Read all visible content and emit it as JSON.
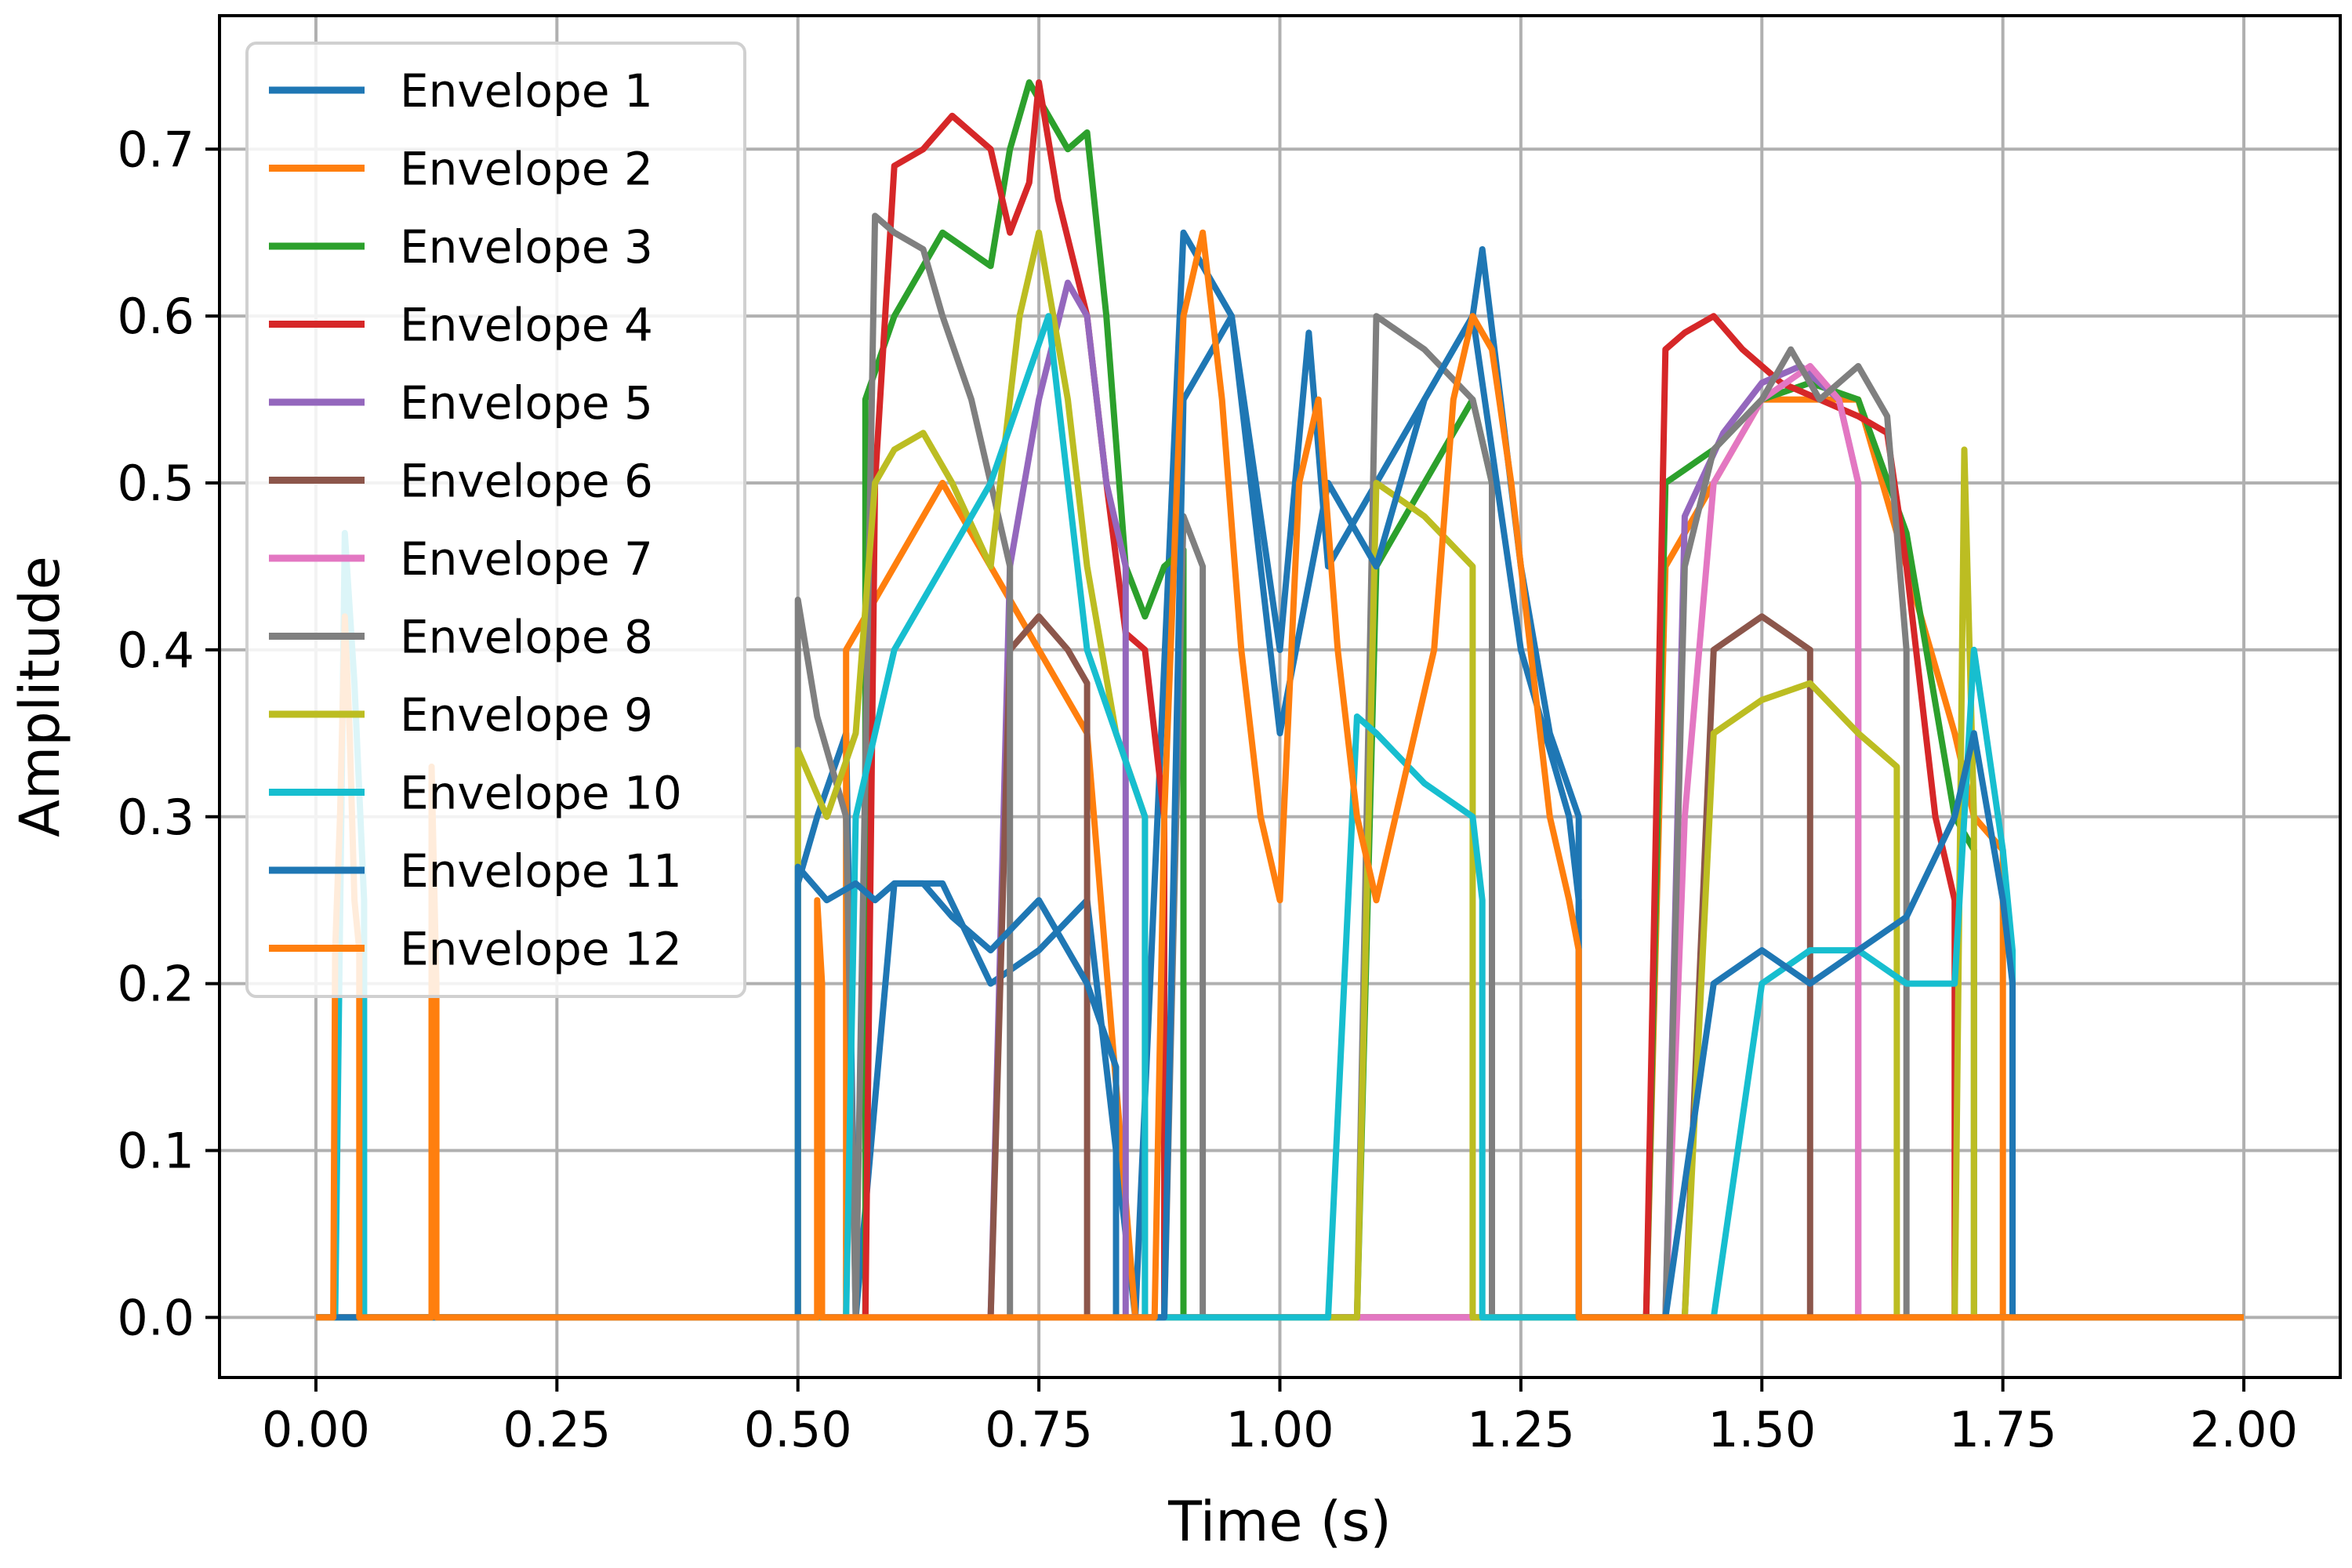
{
  "chart_data": {
    "type": "line",
    "title": "",
    "xlabel": "Time (s)",
    "ylabel": "Amplitude",
    "xlim": [
      -0.1,
      2.1
    ],
    "ylim": [
      -0.036,
      0.78
    ],
    "xticks": [
      "0.00",
      "0.25",
      "0.50",
      "0.75",
      "1.00",
      "1.25",
      "1.50",
      "1.75",
      "2.00"
    ],
    "yticks": [
      "0.0",
      "0.1",
      "0.2",
      "0.3",
      "0.4",
      "0.5",
      "0.6",
      "0.7"
    ],
    "xtick_values": [
      0,
      0.25,
      0.5,
      0.75,
      1.0,
      1.25,
      1.5,
      1.75,
      2.0
    ],
    "ytick_values": [
      0,
      0.1,
      0.2,
      0.3,
      0.4,
      0.5,
      0.6,
      0.7
    ],
    "grid": true,
    "legend_position": "upper-left",
    "series": [
      {
        "name": "Envelope 1",
        "color": "#1f77b4",
        "x": [
          0,
          0.5,
          0.5,
          0.52,
          0.55,
          0.56,
          0.6,
          0.65,
          0.7,
          0.75,
          0.8,
          0.85,
          0.9,
          0.95,
          1.0,
          1.03,
          1.05,
          1.1,
          1.15,
          1.2,
          1.21,
          1.25,
          1.28,
          1.31,
          1.31,
          1.39,
          1.39,
          2.0
        ],
        "y": [
          0,
          0,
          0.26,
          0.3,
          0.35,
          0.0,
          0.26,
          0.26,
          0.2,
          0.22,
          0.25,
          0.0,
          0.65,
          0.6,
          0.4,
          0.59,
          0.45,
          0.5,
          0.55,
          0.6,
          0.64,
          0.45,
          0.35,
          0.3,
          0,
          0,
          0,
          0
        ]
      },
      {
        "name": "Envelope 2",
        "color": "#ff7f0e",
        "x": [
          0,
          0.55,
          0.55,
          0.6,
          0.65,
          0.7,
          0.75,
          0.8,
          0.85,
          1.38,
          1.4,
          1.5,
          1.6,
          1.65,
          1.7,
          1.72,
          1.75,
          1.75,
          2.0
        ],
        "y": [
          0,
          0,
          0.4,
          0.45,
          0.5,
          0.45,
          0.4,
          0.35,
          0.0,
          0,
          0.45,
          0.55,
          0.55,
          0.45,
          0.35,
          0.3,
          0.28,
          0,
          0
        ]
      },
      {
        "name": "Envelope 3",
        "color": "#2ca02c",
        "x": [
          0,
          0.57,
          0.57,
          0.6,
          0.65,
          0.7,
          0.72,
          0.74,
          0.76,
          0.78,
          0.8,
          0.82,
          0.84,
          0.86,
          0.88,
          0.9,
          0.9,
          1.08,
          1.1,
          1.15,
          1.2,
          1.22,
          1.22,
          1.38,
          1.4,
          1.45,
          1.5,
          1.55,
          1.6,
          1.65,
          1.7,
          1.72,
          1.72,
          2.0
        ],
        "y": [
          0,
          0,
          0.55,
          0.6,
          0.65,
          0.63,
          0.7,
          0.74,
          0.72,
          0.7,
          0.71,
          0.6,
          0.45,
          0.42,
          0.45,
          0.46,
          0,
          0,
          0.45,
          0.5,
          0.55,
          0.5,
          0,
          0,
          0.5,
          0.52,
          0.55,
          0.56,
          0.55,
          0.47,
          0.3,
          0.28,
          0,
          0
        ]
      },
      {
        "name": "Envelope 4",
        "color": "#d62728",
        "x": [
          0,
          0.57,
          0.58,
          0.6,
          0.63,
          0.66,
          0.68,
          0.7,
          0.72,
          0.74,
          0.75,
          0.77,
          0.8,
          0.82,
          0.84,
          0.86,
          0.88,
          0.88,
          1.38,
          1.4,
          1.42,
          1.45,
          1.48,
          1.52,
          1.56,
          1.6,
          1.63,
          1.65,
          1.68,
          1.7,
          1.7,
          2.0
        ],
        "y": [
          0,
          0,
          0.5,
          0.69,
          0.7,
          0.72,
          0.71,
          0.7,
          0.65,
          0.68,
          0.74,
          0.67,
          0.6,
          0.5,
          0.41,
          0.4,
          0.3,
          0,
          0,
          0.58,
          0.59,
          0.6,
          0.58,
          0.56,
          0.55,
          0.54,
          0.53,
          0.45,
          0.3,
          0.25,
          0,
          0
        ]
      },
      {
        "name": "Envelope 5",
        "color": "#9467bd",
        "x": [
          0,
          0.7,
          0.72,
          0.75,
          0.78,
          0.8,
          0.82,
          0.84,
          0.84,
          1.4,
          1.42,
          1.46,
          1.5,
          1.54,
          1.58,
          1.6,
          1.6,
          2.0
        ],
        "y": [
          0,
          0,
          0.45,
          0.55,
          0.62,
          0.6,
          0.5,
          0.45,
          0,
          0,
          0.48,
          0.53,
          0.56,
          0.57,
          0.55,
          0.5,
          0,
          0
        ]
      },
      {
        "name": "Envelope 6",
        "color": "#8c564b",
        "x": [
          0,
          0.7,
          0.72,
          0.75,
          0.78,
          0.8,
          0.8,
          1.42,
          1.45,
          1.5,
          1.55,
          1.55,
          2.0
        ],
        "y": [
          0,
          0,
          0.4,
          0.42,
          0.4,
          0.38,
          0,
          0,
          0.4,
          0.42,
          0.4,
          0,
          0
        ]
      },
      {
        "name": "Envelope 7",
        "color": "#e377c2",
        "x": [
          0,
          1.4,
          1.42,
          1.45,
          1.5,
          1.55,
          1.58,
          1.6,
          1.6,
          2.0
        ],
        "y": [
          0,
          0,
          0.3,
          0.5,
          0.55,
          0.57,
          0.55,
          0.5,
          0,
          0
        ]
      },
      {
        "name": "Envelope 8",
        "color": "#7f7f7f",
        "x": [
          0,
          0.5,
          0.5,
          0.52,
          0.55,
          0.56,
          0.58,
          0.6,
          0.63,
          0.65,
          0.68,
          0.7,
          0.72,
          0.72,
          0.88,
          0.9,
          0.92,
          0.92,
          1.08,
          1.1,
          1.15,
          1.2,
          1.22,
          1.22,
          1.4,
          1.42,
          1.45,
          1.5,
          1.53,
          1.56,
          1.6,
          1.63,
          1.65,
          1.65,
          2.0
        ],
        "y": [
          0,
          0,
          0.43,
          0.36,
          0.3,
          0.0,
          0.66,
          0.65,
          0.64,
          0.6,
          0.55,
          0.5,
          0.45,
          0,
          0,
          0.48,
          0.45,
          0,
          0,
          0.6,
          0.58,
          0.55,
          0.5,
          0,
          0,
          0.45,
          0.52,
          0.55,
          0.58,
          0.55,
          0.57,
          0.54,
          0.4,
          0,
          0
        ]
      },
      {
        "name": "Envelope 9",
        "color": "#bcbd22",
        "x": [
          0,
          0.5,
          0.5,
          0.53,
          0.56,
          0.58,
          0.6,
          0.63,
          0.66,
          0.7,
          0.73,
          0.75,
          0.78,
          0.8,
          0.83,
          0.86,
          0.86,
          1.08,
          1.1,
          1.15,
          1.2,
          1.2,
          1.42,
          1.45,
          1.5,
          1.55,
          1.6,
          1.64,
          1.64,
          1.7,
          1.71,
          1.72,
          1.72,
          2.0
        ],
        "y": [
          0,
          0,
          0.34,
          0.3,
          0.35,
          0.5,
          0.52,
          0.53,
          0.5,
          0.45,
          0.6,
          0.65,
          0.55,
          0.45,
          0.35,
          0.3,
          0,
          0,
          0.5,
          0.48,
          0.45,
          0,
          0,
          0.35,
          0.37,
          0.38,
          0.35,
          0.33,
          0,
          0,
          0.52,
          0.3,
          0,
          0
        ]
      },
      {
        "name": "Envelope 10",
        "color": "#17becf",
        "x": [
          0,
          0.02,
          0.03,
          0.04,
          0.05,
          0.05,
          0.55,
          0.56,
          0.6,
          0.65,
          0.7,
          0.73,
          0.76,
          0.78,
          0.8,
          0.83,
          0.86,
          0.86,
          1.05,
          1.08,
          1.1,
          1.15,
          1.2,
          1.21,
          1.21,
          1.45,
          1.5,
          1.55,
          1.6,
          1.65,
          1.7,
          1.72,
          1.75,
          1.76,
          1.76,
          2.0
        ],
        "y": [
          0,
          0,
          0.47,
          0.38,
          0.25,
          0,
          0,
          0.3,
          0.4,
          0.45,
          0.5,
          0.55,
          0.6,
          0.5,
          0.4,
          0.35,
          0.3,
          0,
          0,
          0.36,
          0.35,
          0.32,
          0.3,
          0.25,
          0,
          0,
          0.2,
          0.22,
          0.22,
          0.2,
          0.2,
          0.4,
          0.28,
          0.22,
          0,
          0
        ]
      },
      {
        "name": "Envelope 11",
        "color": "#1f77b4",
        "x": [
          0,
          0.5,
          0.5,
          0.53,
          0.56,
          0.58,
          0.6,
          0.63,
          0.66,
          0.7,
          0.75,
          0.8,
          0.83,
          0.83,
          0.88,
          0.9,
          0.95,
          1.0,
          1.05,
          1.1,
          1.15,
          1.2,
          1.25,
          1.3,
          1.31,
          1.31,
          1.4,
          1.45,
          1.5,
          1.55,
          1.6,
          1.65,
          1.7,
          1.72,
          1.75,
          1.76,
          1.76,
          2.0
        ],
        "y": [
          0,
          0,
          0.27,
          0.25,
          0.26,
          0.25,
          0.26,
          0.26,
          0.24,
          0.22,
          0.25,
          0.2,
          0.15,
          0,
          0,
          0.55,
          0.6,
          0.35,
          0.5,
          0.45,
          0.55,
          0.6,
          0.4,
          0.3,
          0.25,
          0,
          0,
          0.2,
          0.22,
          0.2,
          0.22,
          0.24,
          0.3,
          0.35,
          0.25,
          0.2,
          0,
          0
        ]
      },
      {
        "name": "Envelope 12",
        "color": "#ff7f0e",
        "x": [
          0,
          0.018,
          0.02,
          0.025,
          0.03,
          0.035,
          0.04,
          0.045,
          0.045,
          0.12,
          0.12,
          0.125,
          0.125,
          0.52,
          0.52,
          0.525,
          0.525,
          0.87,
          0.88,
          0.9,
          0.92,
          0.94,
          0.96,
          0.98,
          1.0,
          1.02,
          1.04,
          1.06,
          1.08,
          1.1,
          1.12,
          1.14,
          1.16,
          1.18,
          1.2,
          1.22,
          1.24,
          1.26,
          1.28,
          1.3,
          1.31,
          1.31,
          2.0
        ],
        "y": [
          0,
          0,
          0.22,
          0.3,
          0.42,
          0.35,
          0.25,
          0.22,
          0,
          0,
          0.33,
          0.2,
          0,
          0,
          0.25,
          0.2,
          0,
          0,
          0.3,
          0.6,
          0.65,
          0.55,
          0.4,
          0.3,
          0.25,
          0.5,
          0.55,
          0.4,
          0.3,
          0.25,
          0.3,
          0.35,
          0.4,
          0.55,
          0.6,
          0.58,
          0.5,
          0.4,
          0.3,
          0.25,
          0.22,
          0,
          0
        ]
      }
    ]
  }
}
